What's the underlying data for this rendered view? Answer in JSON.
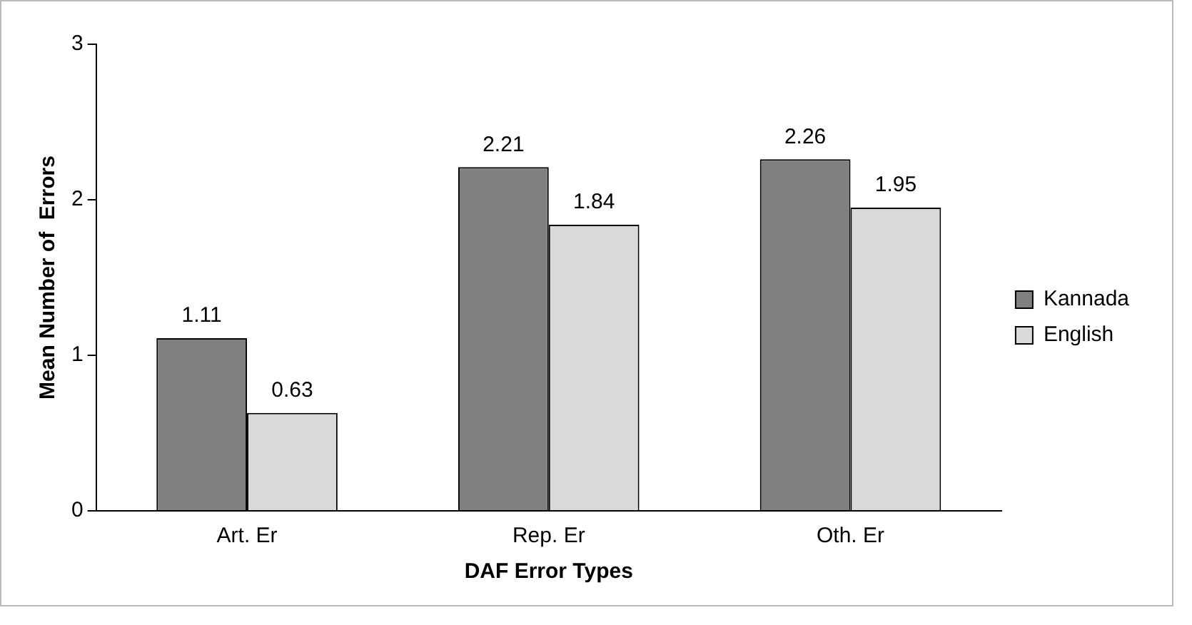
{
  "chart_data": {
    "type": "bar",
    "xlabel": "DAF Error Types",
    "ylabel": "Mean Number of  Errors",
    "categories": [
      "Art. Er",
      "Rep. Er",
      "Oth. Er"
    ],
    "series": [
      {
        "name": "Kannada",
        "color": "#808080",
        "values": [
          1.11,
          2.21,
          2.26
        ]
      },
      {
        "name": "English",
        "color": "#d9d9d9",
        "values": [
          0.63,
          1.84,
          1.95
        ]
      }
    ],
    "ylim": [
      0,
      3
    ],
    "yticks": [
      0,
      1,
      2,
      3
    ],
    "grid": false,
    "legend": "right",
    "data_labels": true
  }
}
